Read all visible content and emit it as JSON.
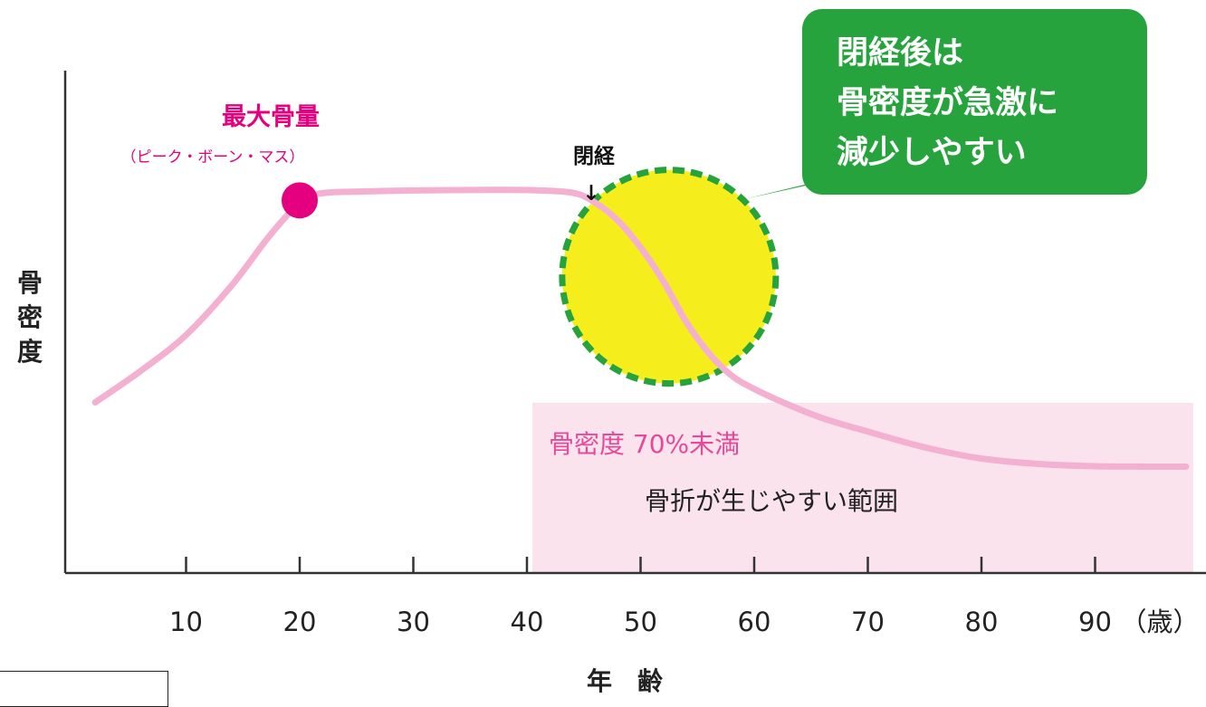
{
  "chart_data": {
    "type": "line",
    "title": "",
    "xlabel": "年　齢",
    "ylabel": "骨密度",
    "x_unit_label": "（歳）",
    "x_ticks": [
      10,
      20,
      30,
      40,
      50,
      60,
      70,
      80,
      90
    ],
    "xlim": [
      0,
      98
    ],
    "ylim": [
      0,
      100
    ],
    "grid": false,
    "series": [
      {
        "x": [
          2,
          6,
          10,
          14,
          17,
          19,
          20,
          22,
          26,
          30,
          35,
          40,
          44,
          46,
          48,
          50,
          52,
          54,
          56,
          58,
          60,
          63,
          66,
          70,
          75,
          80,
          85,
          90,
          95,
          98
        ],
        "y": [
          38,
          45,
          53,
          64,
          74,
          80,
          83,
          84.6,
          85,
          85.2,
          85.3,
          85.3,
          84.7,
          82.5,
          78.5,
          72.5,
          65,
          56,
          49,
          44,
          41,
          37.5,
          34.5,
          31.5,
          28,
          25.5,
          24.3,
          23.8,
          23.7,
          23.7
        ],
        "color": "#f3b0d1"
      }
    ],
    "annotations": {
      "peak": {
        "x": 20,
        "y": 83,
        "title": "最大骨量",
        "subtitle": "（ピーク・ボーン・マス）",
        "color": "#e4007f"
      },
      "menopause": {
        "x": 45.5,
        "label": "閉経",
        "arrow": "↓"
      },
      "highlight_circle": {
        "x": 52.5,
        "y": 66,
        "fill": "#f6ee1c",
        "stroke": "#26a33c"
      },
      "callout": {
        "lines": [
          "閉経後は",
          "骨密度が急激に",
          "減少しやすい"
        ],
        "color": "#26a33c"
      },
      "fracture_zone": {
        "x_from": 40,
        "x_to": 98,
        "title": "骨密度 70%未満",
        "description": "骨折が生じやすい範囲",
        "fill": "#fbe3ee",
        "title_color": "#e44a97"
      }
    }
  }
}
